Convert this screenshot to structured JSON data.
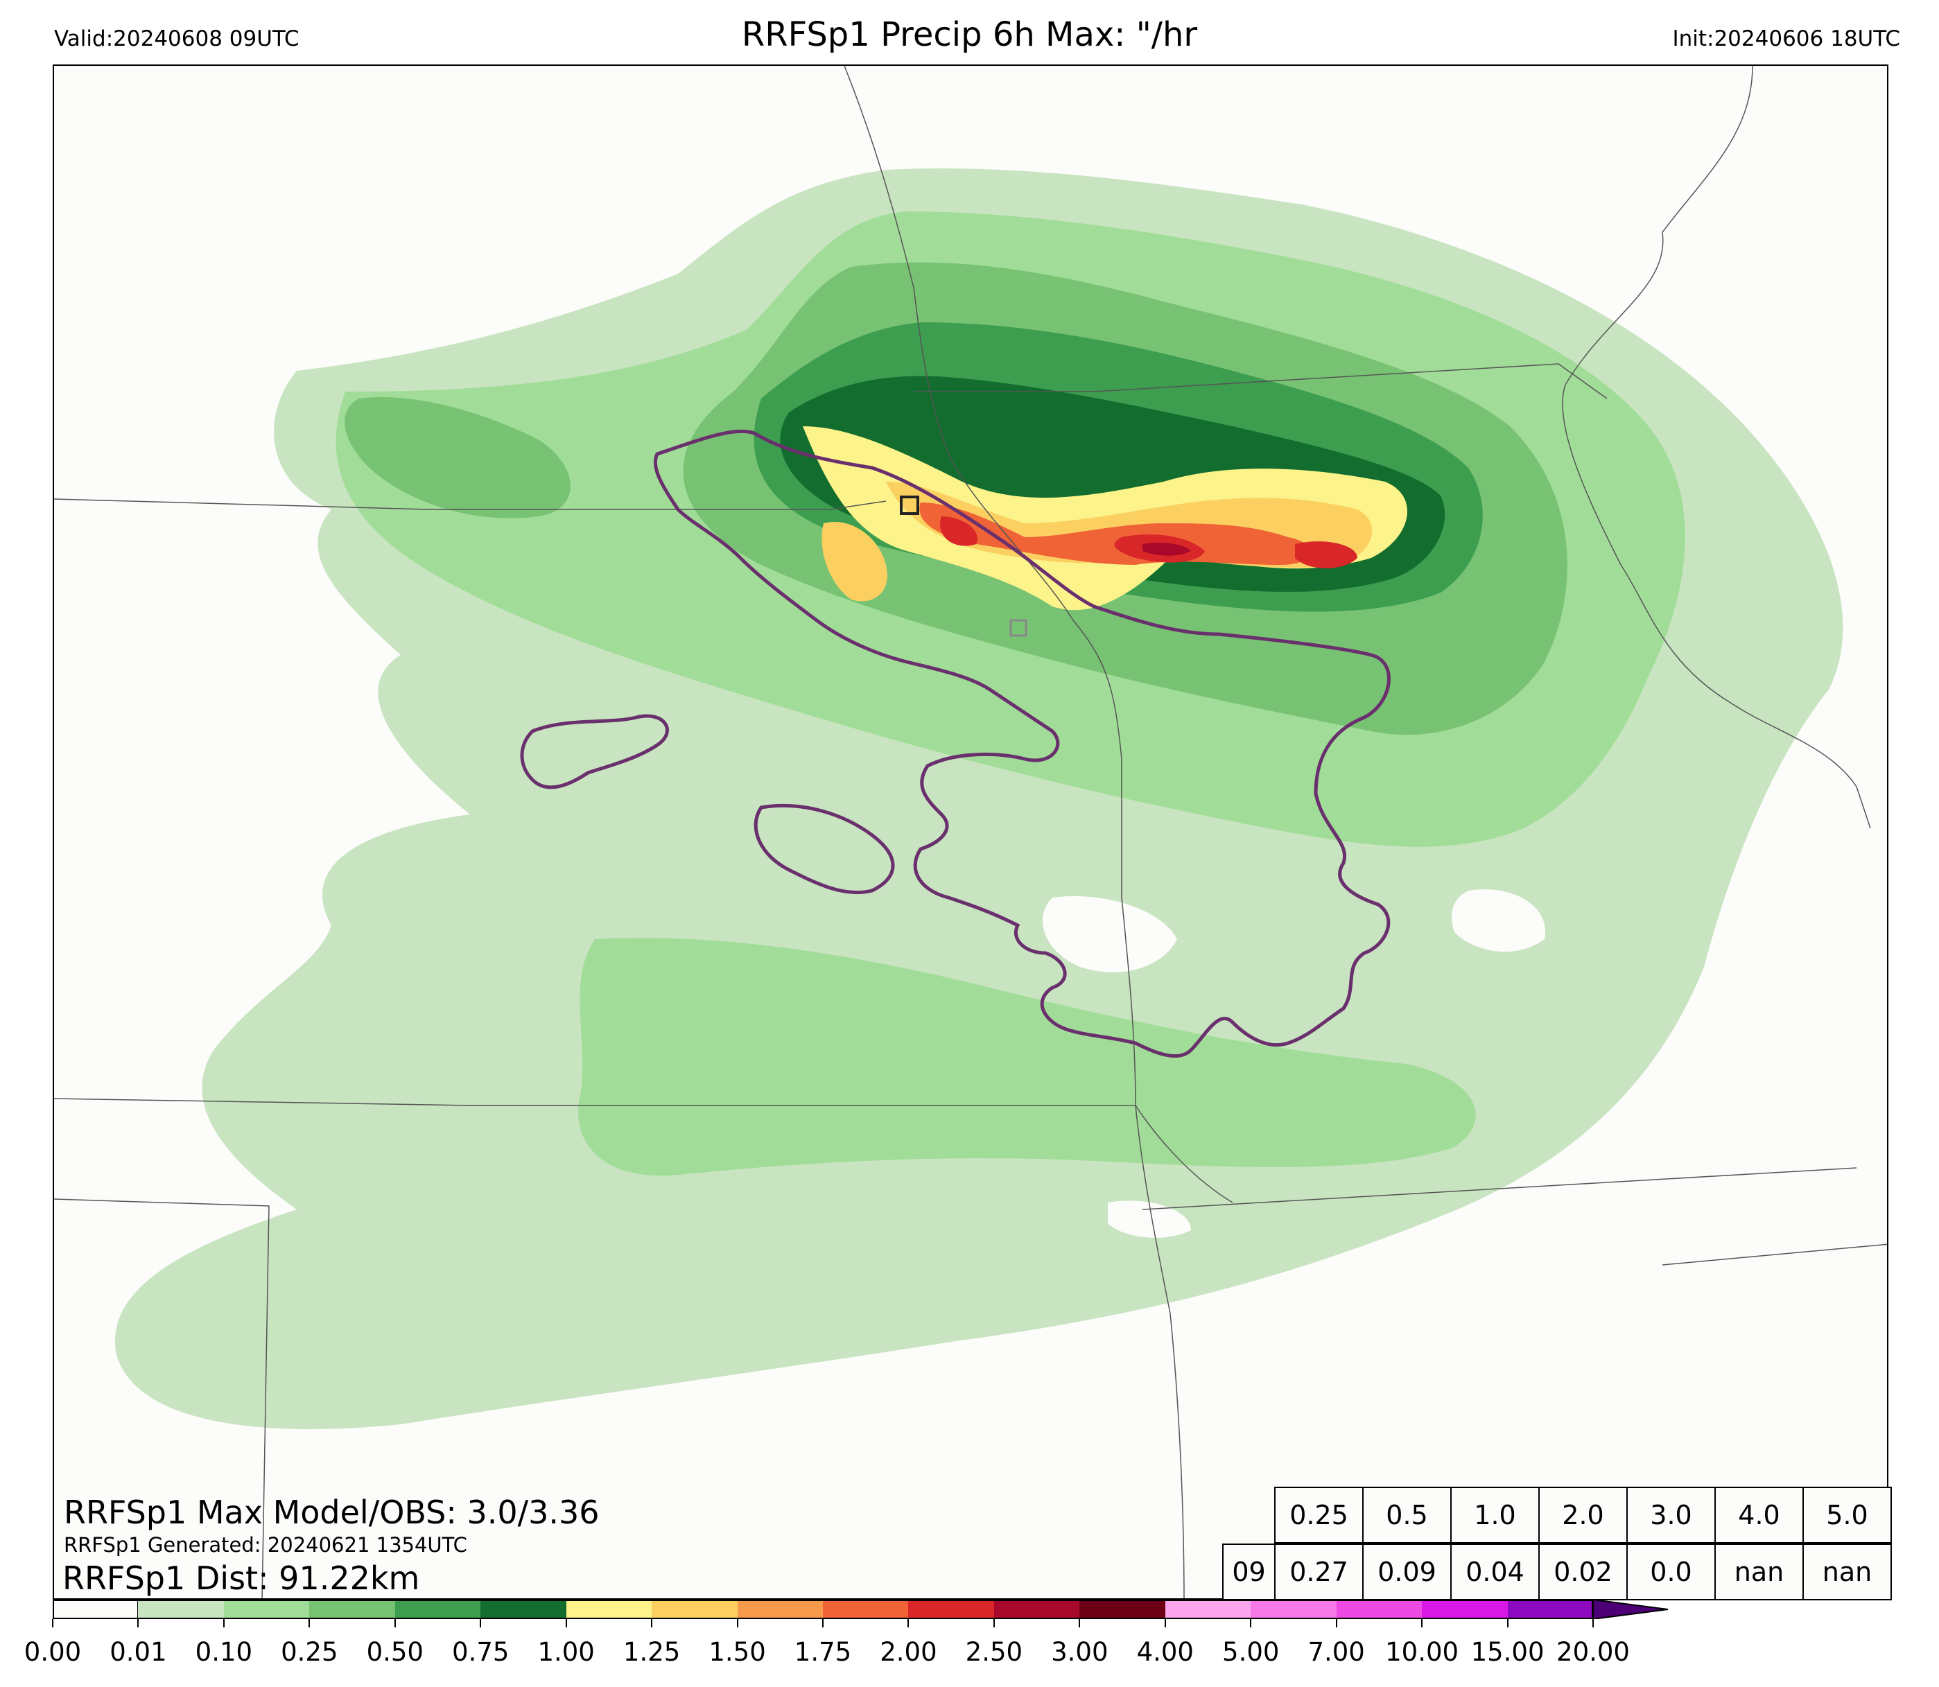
{
  "header": {
    "valid": "Valid:20240608 09UTC",
    "title": "RRFSp1 Precip 6h Max: \"/hr",
    "init": "Init:20240606 18UTC"
  },
  "stats": {
    "max_line": "RRFSp1 Max Model/OBS: 3.0/3.36",
    "generated": "RRFSp1 Generated: 20240621 1354UTC",
    "dist": "RRFSp1 Dist: 91.22km"
  },
  "threshold_table": {
    "thresholds": [
      "0.25",
      "0.5",
      "1.0",
      "2.0",
      "3.0",
      "4.0",
      "5.0"
    ],
    "row_label": "09",
    "values": [
      "0.27",
      "0.09",
      "0.04",
      "0.02",
      "0.0",
      "nan",
      "nan"
    ]
  },
  "colorbar": {
    "ticks": [
      "0.00",
      "0.01",
      "0.10",
      "0.25",
      "0.50",
      "0.75",
      "1.00",
      "1.25",
      "1.50",
      "1.75",
      "2.00",
      "2.50",
      "3.00",
      "4.00",
      "5.00",
      "7.00",
      "10.00",
      "15.00",
      "20.00"
    ],
    "colors": [
      "#fcfcfa",
      "#c8e4c0",
      "#a1dd98",
      "#77c273",
      "#3e9e4f",
      "#136d2e",
      "#fcf38a",
      "#fbd061",
      "#f89a4b",
      "#f06337",
      "#d92628",
      "#a8092a",
      "#6d0016",
      "#fca6ee",
      "#f87ae8",
      "#ec4ae2",
      "#d819e6",
      "#8e0ac1"
    ],
    "extend_color": "#4d0075"
  },
  "map_colors": {
    "c1": "#c8e4c0",
    "c2": "#a1dd98",
    "c3": "#77c273",
    "c4": "#3e9e4f",
    "c5": "#136d2e",
    "c6": "#fcf38a",
    "c7": "#fbd061",
    "c8": "#f89a4b",
    "c9": "#f06337",
    "c10": "#d92628",
    "c11": "#a8092a",
    "obs_contour": "#6a2f6d",
    "border": "#555555"
  }
}
